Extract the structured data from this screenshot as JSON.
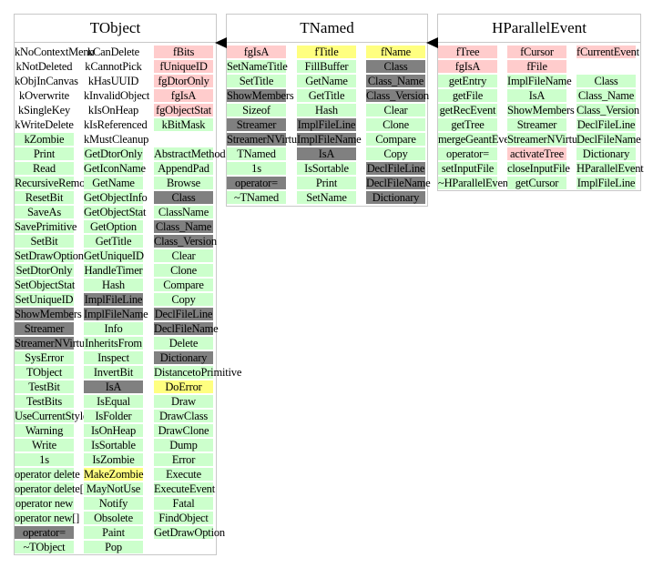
{
  "colors": {
    "method": "#ccffcc",
    "member": "#ffcccc",
    "highlight": "#ffff80",
    "base": "#808080",
    "border": "#c8c8c8"
  },
  "classes": [
    {
      "title": "TObject",
      "columns": [
        [
          {
            "t": "kNoContextMenu",
            "k": "plain"
          },
          {
            "t": "kNotDeleted",
            "k": "plain"
          },
          {
            "t": "kObjInCanvas",
            "k": "plain"
          },
          {
            "t": "kOverwrite",
            "k": "plain"
          },
          {
            "t": "kSingleKey",
            "k": "plain"
          },
          {
            "t": "kWriteDelete",
            "k": "plain"
          },
          {
            "t": "kZombie",
            "k": "method"
          },
          {
            "t": "Print",
            "k": "method"
          },
          {
            "t": "Read",
            "k": "method"
          },
          {
            "t": "RecursiveRemove",
            "k": "method"
          },
          {
            "t": "ResetBit",
            "k": "method"
          },
          {
            "t": "SaveAs",
            "k": "method"
          },
          {
            "t": "SavePrimitive",
            "k": "method"
          },
          {
            "t": "SetBit",
            "k": "method"
          },
          {
            "t": "SetDrawOption",
            "k": "method"
          },
          {
            "t": "SetDtorOnly",
            "k": "method"
          },
          {
            "t": "SetObjectStat",
            "k": "method"
          },
          {
            "t": "SetUniqueID",
            "k": "method"
          },
          {
            "t": "ShowMembers",
            "k": "base"
          },
          {
            "t": "Streamer",
            "k": "base"
          },
          {
            "t": "StreamerNVirtual",
            "k": "base"
          },
          {
            "t": "SysError",
            "k": "method"
          },
          {
            "t": "TObject",
            "k": "method"
          },
          {
            "t": "TestBit",
            "k": "method"
          },
          {
            "t": "TestBits",
            "k": "method"
          },
          {
            "t": "UseCurrentStyle",
            "k": "method"
          },
          {
            "t": "Warning",
            "k": "method"
          },
          {
            "t": "Write",
            "k": "method"
          },
          {
            "t": "1s",
            "k": "method"
          },
          {
            "t": "operator delete",
            "k": "method"
          },
          {
            "t": "operator delete[]",
            "k": "method"
          },
          {
            "t": "operator new",
            "k": "method"
          },
          {
            "t": "operator new[]",
            "k": "method"
          },
          {
            "t": "operator=",
            "k": "base"
          },
          {
            "t": "~TObject",
            "k": "method"
          }
        ],
        [
          {
            "t": "kCanDelete",
            "k": "plain"
          },
          {
            "t": "kCannotPick",
            "k": "plain"
          },
          {
            "t": "kHasUUID",
            "k": "plain"
          },
          {
            "t": "kInvalidObject",
            "k": "plain"
          },
          {
            "t": "kIsOnHeap",
            "k": "plain"
          },
          {
            "t": "kIsReferenced",
            "k": "plain"
          },
          {
            "t": "kMustCleanup",
            "k": "plain"
          },
          {
            "t": "GetDtorOnly",
            "k": "method"
          },
          {
            "t": "GetIconName",
            "k": "method"
          },
          {
            "t": "GetName",
            "k": "method"
          },
          {
            "t": "GetObjectInfo",
            "k": "method"
          },
          {
            "t": "GetObjectStat",
            "k": "method"
          },
          {
            "t": "GetOption",
            "k": "method"
          },
          {
            "t": "GetTitle",
            "k": "method"
          },
          {
            "t": "GetUniqueID",
            "k": "method"
          },
          {
            "t": "HandleTimer",
            "k": "method"
          },
          {
            "t": "Hash",
            "k": "method"
          },
          {
            "t": "ImplFileLine",
            "k": "base"
          },
          {
            "t": "ImplFileName",
            "k": "base"
          },
          {
            "t": "Info",
            "k": "method"
          },
          {
            "t": "InheritsFrom",
            "k": "method"
          },
          {
            "t": "Inspect",
            "k": "method"
          },
          {
            "t": "InvertBit",
            "k": "method"
          },
          {
            "t": "IsA",
            "k": "base"
          },
          {
            "t": "IsEqual",
            "k": "method"
          },
          {
            "t": "IsFolder",
            "k": "method"
          },
          {
            "t": "IsOnHeap",
            "k": "method"
          },
          {
            "t": "IsSortable",
            "k": "method"
          },
          {
            "t": "IsZombie",
            "k": "method"
          },
          {
            "t": "MakeZombie",
            "k": "highlight"
          },
          {
            "t": "MayNotUse",
            "k": "method"
          },
          {
            "t": "Notify",
            "k": "method"
          },
          {
            "t": "Obsolete",
            "k": "method"
          },
          {
            "t": "Paint",
            "k": "method"
          },
          {
            "t": "Pop",
            "k": "method"
          }
        ],
        [
          {
            "t": "fBits",
            "k": "member"
          },
          {
            "t": "fUniqueID",
            "k": "member"
          },
          {
            "t": "fgDtorOnly",
            "k": "member"
          },
          {
            "t": "fgIsA",
            "k": "member"
          },
          {
            "t": "fgObjectStat",
            "k": "member"
          },
          {
            "t": "kBitMask",
            "k": "method"
          },
          {
            "t": "",
            "k": "none"
          },
          {
            "t": "AbstractMethod",
            "k": "method"
          },
          {
            "t": "AppendPad",
            "k": "method"
          },
          {
            "t": "Browse",
            "k": "method"
          },
          {
            "t": "Class",
            "k": "base"
          },
          {
            "t": "ClassName",
            "k": "method"
          },
          {
            "t": "Class_Name",
            "k": "base"
          },
          {
            "t": "Class_Version",
            "k": "base"
          },
          {
            "t": "Clear",
            "k": "method"
          },
          {
            "t": "Clone",
            "k": "method"
          },
          {
            "t": "Compare",
            "k": "method"
          },
          {
            "t": "Copy",
            "k": "method"
          },
          {
            "t": "DeclFileLine",
            "k": "base"
          },
          {
            "t": "DeclFileName",
            "k": "base"
          },
          {
            "t": "Delete",
            "k": "method"
          },
          {
            "t": "Dictionary",
            "k": "base"
          },
          {
            "t": "DistancetoPrimitive",
            "k": "method"
          },
          {
            "t": "DoError",
            "k": "highlight"
          },
          {
            "t": "Draw",
            "k": "method"
          },
          {
            "t": "DrawClass",
            "k": "method"
          },
          {
            "t": "DrawClone",
            "k": "method"
          },
          {
            "t": "Dump",
            "k": "method"
          },
          {
            "t": "Error",
            "k": "method"
          },
          {
            "t": "Execute",
            "k": "method"
          },
          {
            "t": "ExecuteEvent",
            "k": "method"
          },
          {
            "t": "Fatal",
            "k": "method"
          },
          {
            "t": "FindObject",
            "k": "method"
          },
          {
            "t": "GetDrawOption",
            "k": "method"
          }
        ]
      ]
    },
    {
      "title": "TNamed",
      "columns": [
        [
          {
            "t": "fgIsA",
            "k": "member"
          },
          {
            "t": "SetNameTitle",
            "k": "method"
          },
          {
            "t": "SetTitle",
            "k": "method"
          },
          {
            "t": "ShowMembers",
            "k": "base"
          },
          {
            "t": "Sizeof",
            "k": "method"
          },
          {
            "t": "Streamer",
            "k": "base"
          },
          {
            "t": "StreamerNVirtual",
            "k": "base"
          },
          {
            "t": "TNamed",
            "k": "method"
          },
          {
            "t": "1s",
            "k": "method"
          },
          {
            "t": "operator=",
            "k": "base"
          },
          {
            "t": "~TNamed",
            "k": "method"
          }
        ],
        [
          {
            "t": "fTitle",
            "k": "highlight"
          },
          {
            "t": "FillBuffer",
            "k": "method"
          },
          {
            "t": "GetName",
            "k": "method"
          },
          {
            "t": "GetTitle",
            "k": "method"
          },
          {
            "t": "Hash",
            "k": "method"
          },
          {
            "t": "ImplFileLine",
            "k": "base"
          },
          {
            "t": "ImplFileName",
            "k": "base"
          },
          {
            "t": "IsA",
            "k": "base"
          },
          {
            "t": "IsSortable",
            "k": "method"
          },
          {
            "t": "Print",
            "k": "method"
          },
          {
            "t": "SetName",
            "k": "method"
          }
        ],
        [
          {
            "t": "fName",
            "k": "highlight"
          },
          {
            "t": "Class",
            "k": "base"
          },
          {
            "t": "Class_Name",
            "k": "base"
          },
          {
            "t": "Class_Version",
            "k": "base"
          },
          {
            "t": "Clear",
            "k": "method"
          },
          {
            "t": "Clone",
            "k": "method"
          },
          {
            "t": "Compare",
            "k": "method"
          },
          {
            "t": "Copy",
            "k": "method"
          },
          {
            "t": "DeclFileLine",
            "k": "base"
          },
          {
            "t": "DeclFileName",
            "k": "base"
          },
          {
            "t": "Dictionary",
            "k": "base"
          }
        ]
      ]
    },
    {
      "title": "HParallelEvent",
      "columns": [
        [
          {
            "t": "fTree",
            "k": "member"
          },
          {
            "t": "fgIsA",
            "k": "member"
          },
          {
            "t": "getEntry",
            "k": "method"
          },
          {
            "t": "getFile",
            "k": "method"
          },
          {
            "t": "getRecEvent",
            "k": "method"
          },
          {
            "t": "getTree",
            "k": "method"
          },
          {
            "t": "mergeGeantEvent",
            "k": "method"
          },
          {
            "t": "operator=",
            "k": "method"
          },
          {
            "t": "setInputFile",
            "k": "method"
          },
          {
            "t": "~HParallelEvent",
            "k": "method"
          }
        ],
        [
          {
            "t": "fCursor",
            "k": "member"
          },
          {
            "t": "fFile",
            "k": "member"
          },
          {
            "t": "ImplFileName",
            "k": "method"
          },
          {
            "t": "IsA",
            "k": "method"
          },
          {
            "t": "ShowMembers",
            "k": "method"
          },
          {
            "t": "Streamer",
            "k": "method"
          },
          {
            "t": "StreamerNVirtual",
            "k": "method"
          },
          {
            "t": "activateTree",
            "k": "member"
          },
          {
            "t": "closeInputFile",
            "k": "method"
          },
          {
            "t": "getCursor",
            "k": "method"
          }
        ],
        [
          {
            "t": "fCurrentEvent",
            "k": "member"
          },
          {
            "t": "",
            "k": "none"
          },
          {
            "t": "Class",
            "k": "method"
          },
          {
            "t": "Class_Name",
            "k": "method"
          },
          {
            "t": "Class_Version",
            "k": "method"
          },
          {
            "t": "DeclFileLine",
            "k": "method"
          },
          {
            "t": "DeclFileName",
            "k": "method"
          },
          {
            "t": "Dictionary",
            "k": "method"
          },
          {
            "t": "HParallelEvent",
            "k": "method"
          },
          {
            "t": "ImplFileLine",
            "k": "method"
          }
        ]
      ]
    }
  ]
}
